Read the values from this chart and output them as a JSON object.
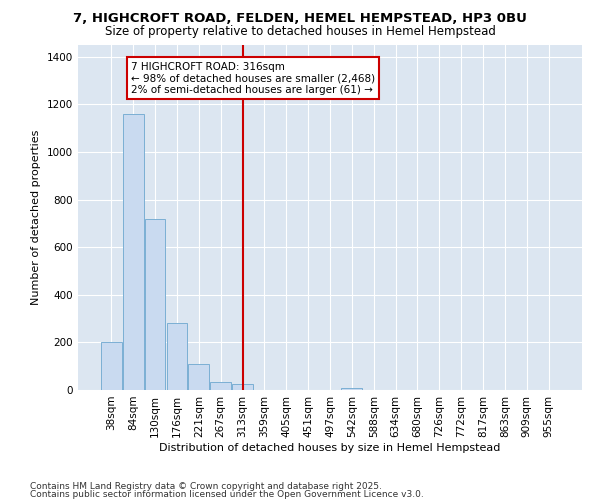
{
  "title1": "7, HIGHCROFT ROAD, FELDEN, HEMEL HEMPSTEAD, HP3 0BU",
  "title2": "Size of property relative to detached houses in Hemel Hempstead",
  "xlabel": "Distribution of detached houses by size in Hemel Hempstead",
  "ylabel": "Number of detached properties",
  "footer1": "Contains HM Land Registry data © Crown copyright and database right 2025.",
  "footer2": "Contains public sector information licensed under the Open Government Licence v3.0.",
  "annotation_title": "7 HIGHCROFT ROAD: 316sqm",
  "annotation_line1": "← 98% of detached houses are smaller (2,468)",
  "annotation_line2": "2% of semi-detached houses are larger (61) →",
  "bar_color": "#c9daf0",
  "bar_edge_color": "#7bafd4",
  "vline_color": "#cc0000",
  "annotation_box_color": "#cc0000",
  "bg_color": "#dce6f1",
  "categories": [
    "38sqm",
    "84sqm",
    "130sqm",
    "176sqm",
    "221sqm",
    "267sqm",
    "313sqm",
    "359sqm",
    "405sqm",
    "451sqm",
    "497sqm",
    "542sqm",
    "588sqm",
    "634sqm",
    "680sqm",
    "726sqm",
    "772sqm",
    "817sqm",
    "863sqm",
    "909sqm",
    "955sqm"
  ],
  "values": [
    200,
    1160,
    720,
    280,
    110,
    35,
    25,
    0,
    0,
    0,
    0,
    10,
    0,
    0,
    0,
    0,
    0,
    0,
    0,
    0,
    0
  ],
  "ylim": [
    0,
    1450
  ],
  "yticks": [
    0,
    200,
    400,
    600,
    800,
    1000,
    1200,
    1400
  ],
  "vline_x_index": 6,
  "title1_fontsize": 9.5,
  "title2_fontsize": 8.5,
  "axis_label_fontsize": 8,
  "tick_fontsize": 7.5,
  "footer_fontsize": 6.5
}
